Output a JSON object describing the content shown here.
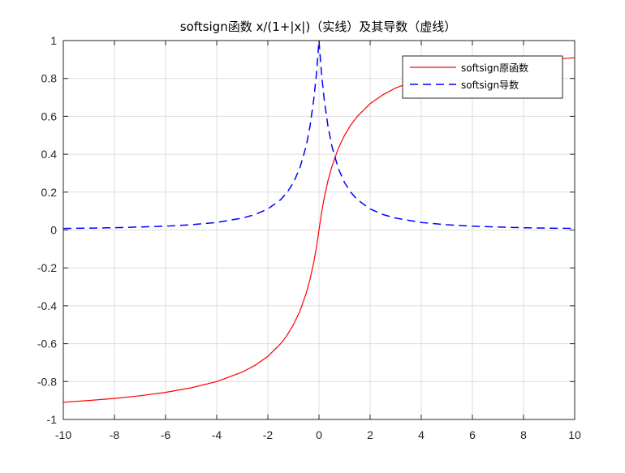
{
  "chart_data": {
    "type": "line",
    "title": "softsign函数 x/(1+|x|)（实线）及其导数（虚线）",
    "xlabel": "",
    "ylabel": "",
    "xlim": [
      -10,
      10
    ],
    "ylim": [
      -1,
      1
    ],
    "grid": true,
    "legend_placement": "top-right",
    "xticks": [
      "-10",
      "-8",
      "-6",
      "-4",
      "-2",
      "0",
      "2",
      "4",
      "6",
      "8",
      "10"
    ],
    "yticks": [
      "1",
      "0.8",
      "0.6",
      "0.4",
      "0.2",
      "0",
      "-0.2",
      "-0.4",
      "-0.6",
      "-0.8",
      "-1"
    ],
    "series": [
      {
        "name": "softsign原函数",
        "style": "solid",
        "color": "#ff0000",
        "x": [
          -10,
          -9,
          -8,
          -7,
          -6,
          -5,
          -4,
          -3,
          -2.5,
          -2,
          -1.5,
          -1.25,
          -1,
          -0.75,
          -0.5,
          -0.35,
          -0.2,
          -0.1,
          0,
          0.1,
          0.2,
          0.35,
          0.5,
          0.75,
          1,
          1.25,
          1.5,
          2,
          2.5,
          3,
          4,
          5,
          6,
          7,
          8,
          9,
          10
        ],
        "y": [
          -0.909,
          -0.9,
          -0.889,
          -0.875,
          -0.857,
          -0.833,
          -0.8,
          -0.75,
          -0.714,
          -0.667,
          -0.6,
          -0.556,
          -0.5,
          -0.429,
          -0.333,
          -0.259,
          -0.167,
          -0.091,
          0,
          0.091,
          0.167,
          0.259,
          0.333,
          0.429,
          0.5,
          0.556,
          0.6,
          0.667,
          0.714,
          0.75,
          0.8,
          0.833,
          0.857,
          0.875,
          0.889,
          0.9,
          0.909
        ]
      },
      {
        "name": "softsign导数",
        "style": "dashed",
        "color": "#0000ff",
        "x": [
          -10,
          -9,
          -8,
          -7,
          -6,
          -5,
          -4,
          -3,
          -2.5,
          -2,
          -1.5,
          -1.25,
          -1,
          -0.75,
          -0.5,
          -0.35,
          -0.2,
          -0.1,
          0,
          0.1,
          0.2,
          0.35,
          0.5,
          0.75,
          1,
          1.25,
          1.5,
          2,
          2.5,
          3,
          4,
          5,
          6,
          7,
          8,
          9,
          10
        ],
        "y": [
          0.008,
          0.01,
          0.012,
          0.016,
          0.02,
          0.028,
          0.04,
          0.063,
          0.082,
          0.111,
          0.16,
          0.198,
          0.25,
          0.327,
          0.444,
          0.549,
          0.694,
          0.826,
          1,
          0.826,
          0.694,
          0.549,
          0.444,
          0.327,
          0.25,
          0.198,
          0.16,
          0.111,
          0.082,
          0.063,
          0.04,
          0.028,
          0.02,
          0.016,
          0.012,
          0.01,
          0.008
        ]
      }
    ]
  }
}
